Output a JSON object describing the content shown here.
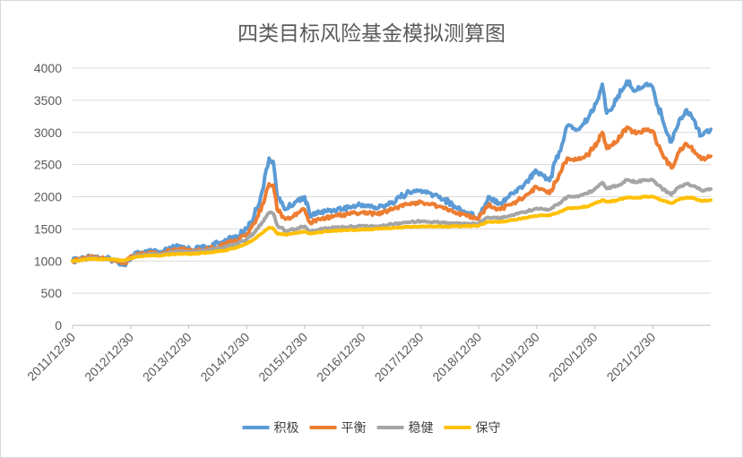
{
  "chart_data": {
    "type": "line",
    "title": "四类目标风险基金模拟测算图",
    "xlabel": "",
    "ylabel": "",
    "ylim": [
      0,
      4000
    ],
    "yticks": [
      0,
      500,
      1000,
      1500,
      2000,
      2500,
      3000,
      3500,
      4000
    ],
    "xlim": [
      "2011/12/30",
      "2022/12/30"
    ],
    "xticks": [
      "2011/12/30",
      "2012/12/30",
      "2013/12/30",
      "2014/12/30",
      "2015/12/30",
      "2016/12/30",
      "2017/12/30",
      "2018/12/30",
      "2019/12/30",
      "2020/12/30",
      "2021/12/30"
    ],
    "grid": true,
    "legend_position": "bottom",
    "series": [
      {
        "name": "积极",
        "color": "#5B9BD5",
        "points": [
          [
            "2011/12/30",
            1000
          ],
          [
            "2012/03/15",
            1050
          ],
          [
            "2012/05/01",
            1080
          ],
          [
            "2012/07/15",
            1040
          ],
          [
            "2012/09/10",
            1020
          ],
          [
            "2012/11/20",
            950
          ],
          [
            "2013/01/20",
            1100
          ],
          [
            "2013/03/01",
            1130
          ],
          [
            "2013/05/20",
            1150
          ],
          [
            "2013/07/01",
            1120
          ],
          [
            "2013/09/15",
            1200
          ],
          [
            "2013/11/01",
            1230
          ],
          [
            "2014/01/15",
            1180
          ],
          [
            "2014/05/01",
            1220
          ],
          [
            "2014/08/01",
            1300
          ],
          [
            "2014/11/01",
            1380
          ],
          [
            "2014/12/30",
            1500
          ],
          [
            "2015/02/15",
            1700
          ],
          [
            "2015/04/15",
            2150
          ],
          [
            "2015/05/20",
            2600
          ],
          [
            "2015/06/15",
            2550
          ],
          [
            "2015/07/10",
            2000
          ],
          [
            "2015/09/01",
            1800
          ],
          [
            "2015/11/15",
            1950
          ],
          [
            "2015/12/30",
            2000
          ],
          [
            "2016/02/01",
            1700
          ],
          [
            "2016/04/01",
            1750
          ],
          [
            "2016/07/01",
            1800
          ],
          [
            "2016/10/01",
            1830
          ],
          [
            "2016/12/30",
            1880
          ],
          [
            "2017/04/01",
            1820
          ],
          [
            "2017/07/01",
            1920
          ],
          [
            "2017/10/01",
            2050
          ],
          [
            "2017/12/30",
            2100
          ],
          [
            "2018/02/01",
            2060
          ],
          [
            "2018/05/01",
            2000
          ],
          [
            "2018/08/01",
            1850
          ],
          [
            "2018/10/15",
            1750
          ],
          [
            "2018/12/30",
            1680
          ],
          [
            "2019/03/01",
            2000
          ],
          [
            "2019/05/15",
            1900
          ],
          [
            "2019/08/01",
            2050
          ],
          [
            "2019/10/15",
            2200
          ],
          [
            "2019/12/30",
            2400
          ],
          [
            "2020/02/01",
            2350
          ],
          [
            "2020/03/20",
            2250
          ],
          [
            "2020/05/20",
            2700
          ],
          [
            "2020/07/10",
            3100
          ],
          [
            "2020/09/15",
            3050
          ],
          [
            "2020/11/15",
            3200
          ],
          [
            "2021/01/15",
            3500
          ],
          [
            "2021/02/15",
            3750
          ],
          [
            "2021/03/15",
            3300
          ],
          [
            "2021/05/15",
            3500
          ],
          [
            "2021/07/20",
            3800
          ],
          [
            "2021/09/15",
            3650
          ],
          [
            "2021/11/15",
            3750
          ],
          [
            "2021/12/30",
            3700
          ],
          [
            "2022/02/01",
            3400
          ],
          [
            "2022/04/26",
            2850
          ],
          [
            "2022/06/15",
            3200
          ],
          [
            "2022/08/01",
            3350
          ],
          [
            "2022/09/15",
            3200
          ],
          [
            "2022/10/31",
            2950
          ],
          [
            "2022/12/30",
            3050
          ]
        ]
      },
      {
        "name": "平衡",
        "color": "#ED7D31",
        "points": [
          [
            "2011/12/30",
            1000
          ],
          [
            "2012/03/15",
            1040
          ],
          [
            "2012/05/01",
            1065
          ],
          [
            "2012/07/15",
            1035
          ],
          [
            "2012/09/10",
            1020
          ],
          [
            "2012/11/20",
            970
          ],
          [
            "2013/01/20",
            1090
          ],
          [
            "2013/03/01",
            1110
          ],
          [
            "2013/05/20",
            1130
          ],
          [
            "2013/07/01",
            1110
          ],
          [
            "2013/09/15",
            1170
          ],
          [
            "2013/11/01",
            1190
          ],
          [
            "2014/01/15",
            1160
          ],
          [
            "2014/05/01",
            1190
          ],
          [
            "2014/08/01",
            1250
          ],
          [
            "2014/11/01",
            1320
          ],
          [
            "2014/12/30",
            1420
          ],
          [
            "2015/02/15",
            1580
          ],
          [
            "2015/04/15",
            1900
          ],
          [
            "2015/05/20",
            2200
          ],
          [
            "2015/06/15",
            2180
          ],
          [
            "2015/07/10",
            1800
          ],
          [
            "2015/09/01",
            1650
          ],
          [
            "2015/11/15",
            1750
          ],
          [
            "2015/12/30",
            1800
          ],
          [
            "2016/02/01",
            1600
          ],
          [
            "2016/04/01",
            1650
          ],
          [
            "2016/07/01",
            1700
          ],
          [
            "2016/10/01",
            1730
          ],
          [
            "2016/12/30",
            1760
          ],
          [
            "2017/04/01",
            1730
          ],
          [
            "2017/07/01",
            1800
          ],
          [
            "2017/10/01",
            1880
          ],
          [
            "2017/12/30",
            1920
          ],
          [
            "2018/02/01",
            1890
          ],
          [
            "2018/05/01",
            1850
          ],
          [
            "2018/08/01",
            1760
          ],
          [
            "2018/10/15",
            1700
          ],
          [
            "2018/12/30",
            1660
          ],
          [
            "2019/03/01",
            1870
          ],
          [
            "2019/05/15",
            1800
          ],
          [
            "2019/08/01",
            1900
          ],
          [
            "2019/10/15",
            2000
          ],
          [
            "2019/12/30",
            2150
          ],
          [
            "2020/02/01",
            2120
          ],
          [
            "2020/03/20",
            2050
          ],
          [
            "2020/05/20",
            2350
          ],
          [
            "2020/07/10",
            2600
          ],
          [
            "2020/09/15",
            2580
          ],
          [
            "2020/11/15",
            2650
          ],
          [
            "2021/01/15",
            2850
          ],
          [
            "2021/02/15",
            3000
          ],
          [
            "2021/03/15",
            2750
          ],
          [
            "2021/05/15",
            2850
          ],
          [
            "2021/07/20",
            3080
          ],
          [
            "2021/09/15",
            2980
          ],
          [
            "2021/11/15",
            3050
          ],
          [
            "2021/12/30",
            3020
          ],
          [
            "2022/02/01",
            2800
          ],
          [
            "2022/04/26",
            2450
          ],
          [
            "2022/06/15",
            2700
          ],
          [
            "2022/08/01",
            2820
          ],
          [
            "2022/09/15",
            2720
          ],
          [
            "2022/10/31",
            2580
          ],
          [
            "2022/12/30",
            2630
          ]
        ]
      },
      {
        "name": "稳健",
        "color": "#A5A5A5",
        "points": [
          [
            "2011/12/30",
            1000
          ],
          [
            "2012/03/15",
            1030
          ],
          [
            "2012/05/01",
            1050
          ],
          [
            "2012/07/15",
            1030
          ],
          [
            "2012/09/10",
            1020
          ],
          [
            "2012/11/20",
            995
          ],
          [
            "2013/01/20",
            1080
          ],
          [
            "2013/03/01",
            1095
          ],
          [
            "2013/05/20",
            1110
          ],
          [
            "2013/07/01",
            1100
          ],
          [
            "2013/09/15",
            1140
          ],
          [
            "2013/11/01",
            1155
          ],
          [
            "2014/01/15",
            1140
          ],
          [
            "2014/05/01",
            1165
          ],
          [
            "2014/08/01",
            1210
          ],
          [
            "2014/11/01",
            1270
          ],
          [
            "2014/12/30",
            1340
          ],
          [
            "2015/02/15",
            1440
          ],
          [
            "2015/04/15",
            1620
          ],
          [
            "2015/05/20",
            1750
          ],
          [
            "2015/06/15",
            1740
          ],
          [
            "2015/07/10",
            1560
          ],
          [
            "2015/09/01",
            1470
          ],
          [
            "2015/11/15",
            1510
          ],
          [
            "2015/12/30",
            1540
          ],
          [
            "2016/02/01",
            1460
          ],
          [
            "2016/04/01",
            1490
          ],
          [
            "2016/07/01",
            1520
          ],
          [
            "2016/10/01",
            1530
          ],
          [
            "2016/12/30",
            1550
          ],
          [
            "2017/04/01",
            1540
          ],
          [
            "2017/07/01",
            1570
          ],
          [
            "2017/10/01",
            1600
          ],
          [
            "2017/12/30",
            1620
          ],
          [
            "2018/02/01",
            1610
          ],
          [
            "2018/05/01",
            1600
          ],
          [
            "2018/08/01",
            1590
          ],
          [
            "2018/10/15",
            1580
          ],
          [
            "2018/12/30",
            1580
          ],
          [
            "2019/03/01",
            1680
          ],
          [
            "2019/05/15",
            1670
          ],
          [
            "2019/08/01",
            1720
          ],
          [
            "2019/10/15",
            1760
          ],
          [
            "2019/12/30",
            1820
          ],
          [
            "2020/02/01",
            1810
          ],
          [
            "2020/03/20",
            1800
          ],
          [
            "2020/05/20",
            1900
          ],
          [
            "2020/07/10",
            2000
          ],
          [
            "2020/09/15",
            2000
          ],
          [
            "2020/11/15",
            2050
          ],
          [
            "2021/01/15",
            2150
          ],
          [
            "2021/02/15",
            2220
          ],
          [
            "2021/03/15",
            2130
          ],
          [
            "2021/05/15",
            2170
          ],
          [
            "2021/07/20",
            2260
          ],
          [
            "2021/09/15",
            2230
          ],
          [
            "2021/11/15",
            2260
          ],
          [
            "2021/12/30",
            2260
          ],
          [
            "2022/02/01",
            2180
          ],
          [
            "2022/04/26",
            2030
          ],
          [
            "2022/06/15",
            2150
          ],
          [
            "2022/08/01",
            2200
          ],
          [
            "2022/09/15",
            2170
          ],
          [
            "2022/10/31",
            2100
          ],
          [
            "2022/12/30",
            2120
          ]
        ]
      },
      {
        "name": "保守",
        "color": "#FFC000",
        "points": [
          [
            "2011/12/30",
            1000
          ],
          [
            "2012/03/15",
            1020
          ],
          [
            "2012/05/01",
            1035
          ],
          [
            "2012/07/15",
            1030
          ],
          [
            "2012/09/10",
            1025
          ],
          [
            "2012/11/20",
            1010
          ],
          [
            "2013/01/20",
            1060
          ],
          [
            "2013/03/01",
            1075
          ],
          [
            "2013/05/20",
            1090
          ],
          [
            "2013/07/01",
            1085
          ],
          [
            "2013/09/15",
            1105
          ],
          [
            "2013/11/01",
            1115
          ],
          [
            "2014/01/15",
            1110
          ],
          [
            "2014/05/01",
            1130
          ],
          [
            "2014/08/01",
            1160
          ],
          [
            "2014/11/01",
            1210
          ],
          [
            "2014/12/30",
            1270
          ],
          [
            "2015/02/15",
            1340
          ],
          [
            "2015/04/15",
            1450
          ],
          [
            "2015/05/20",
            1520
          ],
          [
            "2015/06/15",
            1510
          ],
          [
            "2015/07/10",
            1430
          ],
          [
            "2015/09/01",
            1410
          ],
          [
            "2015/11/15",
            1440
          ],
          [
            "2015/12/30",
            1460
          ],
          [
            "2016/02/01",
            1430
          ],
          [
            "2016/04/01",
            1450
          ],
          [
            "2016/07/01",
            1470
          ],
          [
            "2016/10/01",
            1480
          ],
          [
            "2016/12/30",
            1490
          ],
          [
            "2017/04/01",
            1500
          ],
          [
            "2017/07/01",
            1510
          ],
          [
            "2017/10/01",
            1530
          ],
          [
            "2017/12/30",
            1540
          ],
          [
            "2018/02/01",
            1540
          ],
          [
            "2018/05/01",
            1540
          ],
          [
            "2018/08/01",
            1540
          ],
          [
            "2018/10/15",
            1540
          ],
          [
            "2018/12/30",
            1550
          ],
          [
            "2019/03/01",
            1610
          ],
          [
            "2019/05/15",
            1610
          ],
          [
            "2019/08/01",
            1640
          ],
          [
            "2019/10/15",
            1670
          ],
          [
            "2019/12/30",
            1700
          ],
          [
            "2020/02/01",
            1710
          ],
          [
            "2020/03/20",
            1710
          ],
          [
            "2020/05/20",
            1760
          ],
          [
            "2020/07/10",
            1820
          ],
          [
            "2020/09/15",
            1830
          ],
          [
            "2020/11/15",
            1850
          ],
          [
            "2021/01/15",
            1910
          ],
          [
            "2021/02/15",
            1950
          ],
          [
            "2021/03/15",
            1920
          ],
          [
            "2021/05/15",
            1940
          ],
          [
            "2021/07/20",
            1990
          ],
          [
            "2021/09/15",
            1980
          ],
          [
            "2021/11/15",
            2000
          ],
          [
            "2021/12/30",
            2000
          ],
          [
            "2022/02/01",
            1970
          ],
          [
            "2022/04/26",
            1900
          ],
          [
            "2022/06/15",
            1960
          ],
          [
            "2022/08/01",
            1990
          ],
          [
            "2022/09/15",
            1980
          ],
          [
            "2022/10/31",
            1930
          ],
          [
            "2022/12/30",
            1950
          ]
        ]
      }
    ]
  }
}
